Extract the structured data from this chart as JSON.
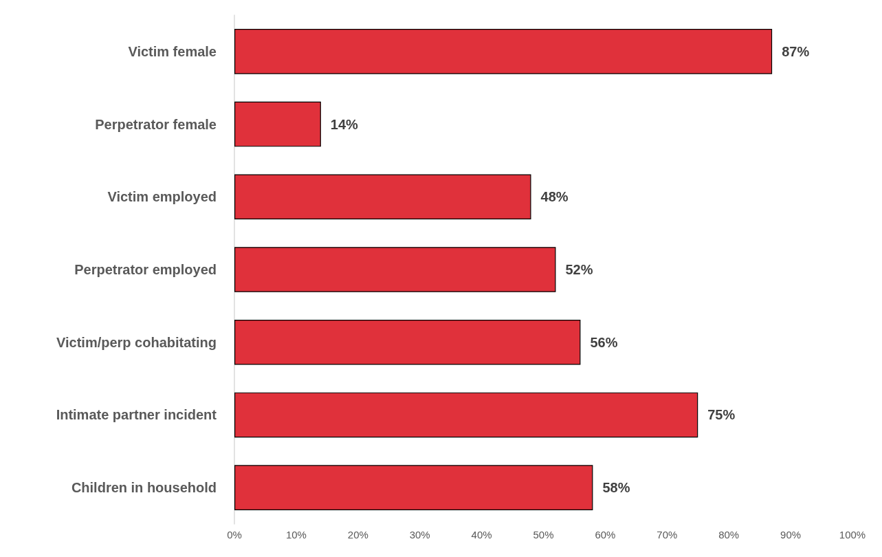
{
  "chart_data": {
    "type": "bar",
    "orientation": "horizontal",
    "categories": [
      "Victim female",
      "Perpetrator female",
      "Victim employed",
      "Perpetrator employed",
      "Victim/perp cohabitating",
      "Intimate partner incident",
      "Children in household"
    ],
    "values": [
      87,
      14,
      48,
      52,
      56,
      75,
      58
    ],
    "value_labels": [
      "87%",
      "14%",
      "48%",
      "52%",
      "56%",
      "75%",
      "58%"
    ],
    "color": "#e0313b",
    "xlim": [
      0,
      100
    ],
    "xticks": [
      {
        "value": 0,
        "label": "0%"
      },
      {
        "value": 10,
        "label": "10%"
      },
      {
        "value": 20,
        "label": "20%"
      },
      {
        "value": 30,
        "label": "30%"
      },
      {
        "value": 40,
        "label": "40%"
      },
      {
        "value": 50,
        "label": "50%"
      },
      {
        "value": 60,
        "label": "60%"
      },
      {
        "value": 70,
        "label": "70%"
      },
      {
        "value": 80,
        "label": "80%"
      },
      {
        "value": 90,
        "label": "90%"
      },
      {
        "value": 100,
        "label": "100%"
      }
    ],
    "grid": false
  }
}
